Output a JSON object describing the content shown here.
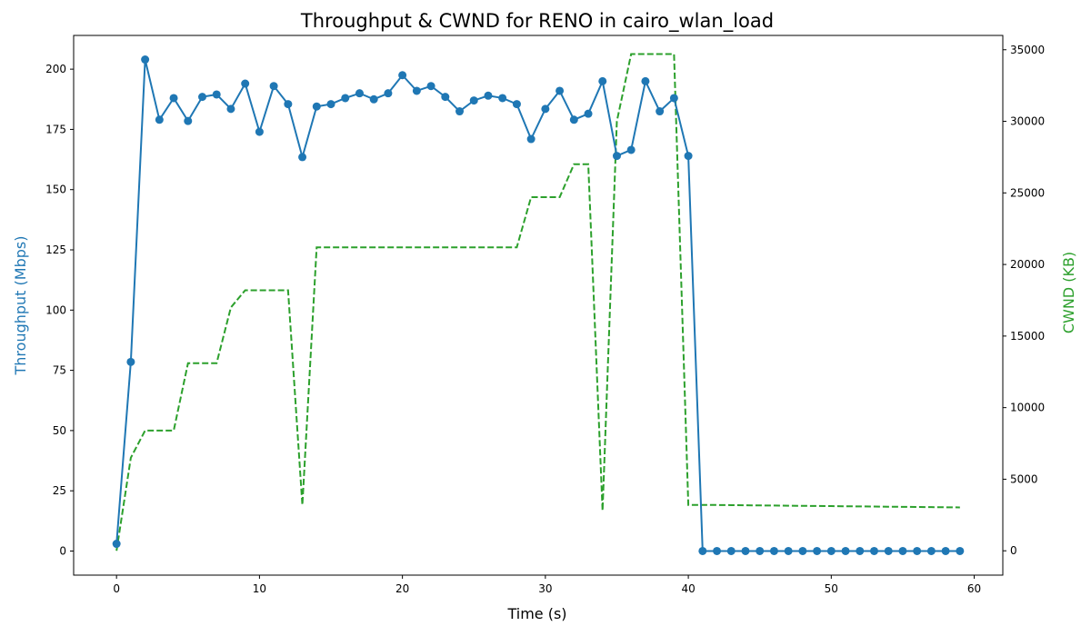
{
  "chart_data": {
    "type": "line",
    "title": "Throughput & CWND for RENO in cairo_wlan_load",
    "xlabel": "Time (s)",
    "ylabel": "Throughput (Mbps)",
    "y2label": "CWND (KB)",
    "xlim": [
      -3,
      62
    ],
    "ylim": [
      -10,
      214
    ],
    "y2lim": [
      -1700,
      36000
    ],
    "xticks": [
      0,
      10,
      20,
      30,
      40,
      50,
      60
    ],
    "yticks": [
      0,
      25,
      50,
      75,
      100,
      125,
      150,
      175,
      200
    ],
    "y2ticks": [
      0,
      5000,
      10000,
      15000,
      20000,
      25000,
      30000,
      35000
    ],
    "grid": false,
    "colors": {
      "throughput": "#1f77b4",
      "cwnd": "#2ca02c"
    },
    "series": [
      {
        "axis": "left",
        "style": "solid line with circle markers",
        "color": "#1f77b4",
        "x": [
          0,
          1,
          2,
          3,
          4,
          5,
          6,
          7,
          8,
          9,
          10,
          11,
          12,
          13,
          14,
          15,
          16,
          17,
          18,
          19,
          20,
          21,
          22,
          23,
          24,
          25,
          26,
          27,
          28,
          29,
          30,
          31,
          32,
          33,
          34,
          35,
          36,
          37,
          38,
          39,
          40,
          41,
          42,
          43,
          44,
          45,
          46,
          47,
          48,
          49,
          50,
          51,
          52,
          53,
          54,
          55,
          56,
          57,
          58,
          59
        ],
        "values": [
          3,
          78.5,
          204,
          179,
          188,
          178.5,
          188.5,
          189.5,
          183.5,
          194,
          174,
          193,
          185.5,
          163.5,
          184.5,
          185.5,
          188,
          190,
          187.5,
          190,
          197.5,
          191,
          193,
          188.5,
          182.5,
          187,
          189,
          188,
          185.5,
          171,
          183.5,
          191,
          179,
          181.5,
          195,
          164,
          166.5,
          195,
          182.5,
          188,
          164,
          0,
          0,
          0,
          0,
          0,
          0,
          0,
          0,
          0,
          0,
          0,
          0,
          0,
          0,
          0,
          0,
          0,
          0,
          0
        ]
      },
      {
        "axis": "right",
        "style": "dashed line",
        "color": "#2ca02c",
        "x": [
          0,
          1,
          2,
          3,
          4,
          5,
          6,
          7,
          8,
          9,
          10,
          11,
          12,
          13,
          14,
          15,
          16,
          17,
          18,
          19,
          20,
          21,
          22,
          23,
          24,
          25,
          26,
          27,
          28,
          29,
          30,
          31,
          32,
          33,
          34,
          35,
          36,
          37,
          38,
          39,
          40,
          41,
          42,
          43,
          44,
          45,
          46,
          47,
          48,
          49,
          50,
          51,
          52,
          53,
          54,
          55,
          56,
          57,
          58,
          59
        ],
        "values": [
          0,
          6500,
          8400,
          8400,
          8400,
          13100,
          13100,
          13100,
          17000,
          18200,
          18200,
          18200,
          18200,
          3200,
          21200,
          21200,
          21200,
          21200,
          21200,
          21200,
          21200,
          21200,
          21200,
          21200,
          21200,
          21200,
          21200,
          21200,
          21200,
          24700,
          24700,
          24700,
          27000,
          27000,
          2800,
          30000,
          34700,
          34700,
          34700,
          34700,
          3200,
          3200,
          3200,
          3190,
          3180,
          3170,
          3160,
          3150,
          3140,
          3130,
          3120,
          3110,
          3100,
          3090,
          3080,
          3070,
          3060,
          3050,
          3040,
          3030
        ]
      }
    ]
  }
}
